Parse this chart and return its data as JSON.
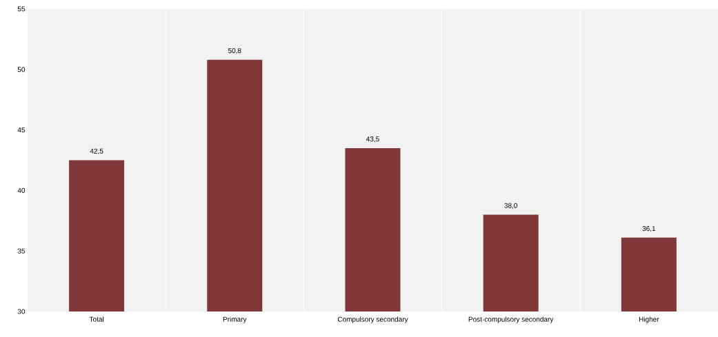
{
  "chart_data": {
    "type": "bar",
    "categories": [
      "Total",
      "Primary",
      "Compulsory secondary",
      "Post-compulsory secondary",
      "Higher"
    ],
    "values": [
      42.5,
      50.8,
      43.5,
      38.0,
      36.1
    ],
    "value_labels": [
      "42,5",
      "50,8",
      "43,5",
      "38,0",
      "36,1"
    ],
    "color": "#7f3737",
    "ylim": [
      30,
      55
    ],
    "yticks": [
      30,
      35,
      40,
      45,
      50,
      55
    ],
    "grid": "x"
  }
}
